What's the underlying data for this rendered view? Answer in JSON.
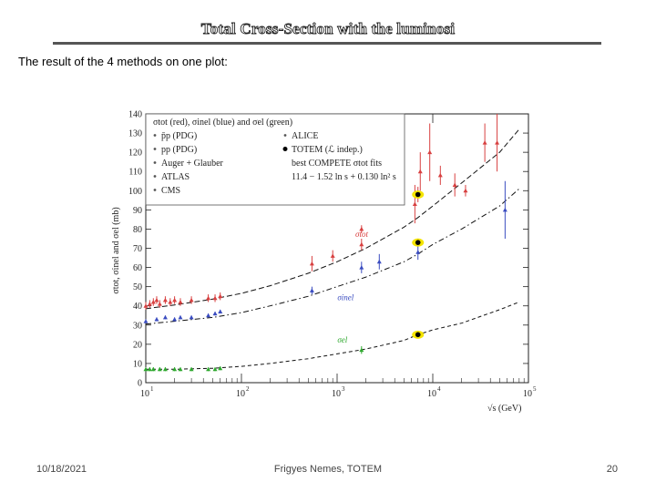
{
  "slide": {
    "title": "Total Cross-Section with the luminosi",
    "subtitle": "The result of the 4 methods on one plot:",
    "footer": {
      "date": "10/18/2021",
      "author": "Frigyes Nemes, TOTEM",
      "page": "20"
    }
  },
  "colors": {
    "tot": "#d84040",
    "inel": "#3a4cc0",
    "el": "#2ea82e",
    "fit": "#111111",
    "totem": "#f4e400"
  },
  "chart_data": {
    "type": "scatter",
    "title": "",
    "xlabel": "√s (GeV)",
    "ylabel": "σtot, σinel and σel (mb)",
    "xscale": "log",
    "xlim": [
      10,
      100000
    ],
    "ylim": [
      0,
      140
    ],
    "x_ticks": [
      {
        "v": 10,
        "base": "10",
        "exp": "1"
      },
      {
        "v": 100,
        "base": "10",
        "exp": "2"
      },
      {
        "v": 1000,
        "base": "10",
        "exp": "3"
      },
      {
        "v": 10000,
        "base": "10",
        "exp": "4"
      },
      {
        "v": 100000,
        "base": "10",
        "exp": "5"
      }
    ],
    "y_ticks": [
      0,
      10,
      20,
      30,
      40,
      50,
      60,
      70,
      80,
      90,
      100,
      110,
      120,
      130,
      140
    ],
    "legend": {
      "header": "σtot (red), σinel (blue) and σel (green)",
      "entries": [
        {
          "label": "p̄p (PDG)",
          "marker": "triangle-up"
        },
        {
          "label": "ALICE",
          "marker": "triangle-down"
        },
        {
          "label": "pp (PDG)",
          "marker": "triangle-down"
        },
        {
          "label": "TOTEM (ℒ indep.)",
          "marker": "dot"
        },
        {
          "label": "Auger + Glauber",
          "marker": "tick"
        },
        {
          "label": "best COMPETE σtot fits",
          "marker": "none"
        },
        {
          "label": "ATLAS",
          "marker": "square"
        },
        {
          "label": "11.4 − 1.52 ln s + 0.130 ln² s",
          "marker": "none"
        },
        {
          "label": "CMS",
          "marker": "triangle-right"
        }
      ]
    },
    "annotations": [
      {
        "text": "σtot",
        "x": 1850,
        "y": 76,
        "series": "tot"
      },
      {
        "text": "σinel",
        "x": 1200,
        "y": 43,
        "series": "inel"
      },
      {
        "text": "σel",
        "x": 1200,
        "y": 21,
        "series": "el"
      }
    ],
    "fits": [
      {
        "name": "σtot fit",
        "style": "solid-dashed",
        "x": [
          10,
          14,
          20,
          30,
          50,
          100,
          200,
          500,
          1000,
          2000,
          5000,
          7000,
          10000,
          20000,
          50000,
          80000
        ],
        "y": [
          38.5,
          39.5,
          40.5,
          41.8,
          43.5,
          46.5,
          50.5,
          57,
          63,
          70,
          81,
          86,
          92,
          104,
          120,
          132
        ]
      },
      {
        "name": "σinel fit",
        "style": "dash-dot",
        "x": [
          10,
          20,
          50,
          100,
          200,
          500,
          1000,
          2000,
          5000,
          7000,
          10000,
          20000,
          50000,
          80000
        ],
        "y": [
          30.5,
          32,
          34,
          36.5,
          40,
          45,
          50,
          55,
          63,
          67,
          72,
          80,
          92,
          101
        ]
      },
      {
        "name": "σel fit",
        "style": "dashed",
        "x": [
          10,
          20,
          50,
          100,
          200,
          500,
          1000,
          2000,
          5000,
          7000,
          10000,
          20000,
          50000,
          80000
        ],
        "y": [
          7,
          7,
          7.5,
          8.5,
          10,
          12.5,
          15,
          17.5,
          22,
          25,
          27.5,
          31,
          38,
          42
        ]
      }
    ],
    "series": [
      {
        "name": "σtot",
        "color_key": "tot",
        "points": [
          {
            "x": 10,
            "y": 40,
            "err": 2
          },
          {
            "x": 11,
            "y": 41,
            "err": 2
          },
          {
            "x": 12,
            "y": 42,
            "err": 2
          },
          {
            "x": 13,
            "y": 43,
            "err": 2
          },
          {
            "x": 14,
            "y": 41,
            "err": 2
          },
          {
            "x": 16,
            "y": 43,
            "err": 2
          },
          {
            "x": 18,
            "y": 42,
            "err": 2
          },
          {
            "x": 20,
            "y": 43,
            "err": 2
          },
          {
            "x": 23,
            "y": 42,
            "err": 2
          },
          {
            "x": 30,
            "y": 43,
            "err": 2
          },
          {
            "x": 45,
            "y": 44,
            "err": 2
          },
          {
            "x": 53,
            "y": 44,
            "err": 2
          },
          {
            "x": 60,
            "y": 45,
            "err": 2
          },
          {
            "x": 546,
            "y": 62,
            "err": 4
          },
          {
            "x": 900,
            "y": 66,
            "err": 3
          },
          {
            "x": 1800,
            "y": 72,
            "err": 3
          },
          {
            "x": 1800,
            "y": 80,
            "err": 2
          },
          {
            "x": 6500,
            "y": 93,
            "err": 10
          },
          {
            "x": 7000,
            "y": 98,
            "err": 4
          },
          {
            "x": 7400,
            "y": 110,
            "err": 10
          },
          {
            "x": 9300,
            "y": 120,
            "err": 15
          },
          {
            "x": 12000,
            "y": 108,
            "err": 5
          },
          {
            "x": 17000,
            "y": 103,
            "err": 6
          },
          {
            "x": 22000,
            "y": 100,
            "err": 3
          },
          {
            "x": 35000,
            "y": 125,
            "err": 10
          },
          {
            "x": 47000,
            "y": 125,
            "err": 15
          }
        ]
      },
      {
        "name": "σinel",
        "color_key": "inel",
        "points": [
          {
            "x": 10,
            "y": 32,
            "err": 1
          },
          {
            "x": 13,
            "y": 33,
            "err": 1
          },
          {
            "x": 16,
            "y": 34,
            "err": 1
          },
          {
            "x": 20,
            "y": 33,
            "err": 1
          },
          {
            "x": 23,
            "y": 34,
            "err": 1
          },
          {
            "x": 30,
            "y": 34,
            "err": 1
          },
          {
            "x": 45,
            "y": 35,
            "err": 1
          },
          {
            "x": 53,
            "y": 36,
            "err": 1
          },
          {
            "x": 60,
            "y": 37,
            "err": 1
          },
          {
            "x": 546,
            "y": 48,
            "err": 2
          },
          {
            "x": 1800,
            "y": 60,
            "err": 3
          },
          {
            "x": 2760,
            "y": 63,
            "err": 4
          },
          {
            "x": 7000,
            "y": 68,
            "err": 4
          },
          {
            "x": 7000,
            "y": 73,
            "err": 2
          },
          {
            "x": 57000,
            "y": 90,
            "err": 15
          }
        ]
      },
      {
        "name": "σel",
        "color_key": "el",
        "points": [
          {
            "x": 10,
            "y": 7,
            "err": 1
          },
          {
            "x": 11,
            "y": 7,
            "err": 1
          },
          {
            "x": 12,
            "y": 7,
            "err": 1
          },
          {
            "x": 14,
            "y": 7,
            "err": 1
          },
          {
            "x": 16,
            "y": 7,
            "err": 1
          },
          {
            "x": 20,
            "y": 7,
            "err": 1
          },
          {
            "x": 23,
            "y": 7,
            "err": 1
          },
          {
            "x": 30,
            "y": 7,
            "err": 1
          },
          {
            "x": 45,
            "y": 7,
            "err": 1
          },
          {
            "x": 53,
            "y": 7,
            "err": 1
          },
          {
            "x": 60,
            "y": 7.5,
            "err": 1
          },
          {
            "x": 1800,
            "y": 17,
            "err": 2
          }
        ]
      },
      {
        "name": "TOTEM (ℒ indep.)",
        "color_key": "fit",
        "highlight": true,
        "points": [
          {
            "x": 7000,
            "y": 98,
            "err": 2
          },
          {
            "x": 7000,
            "y": 73,
            "err": 2
          },
          {
            "x": 7000,
            "y": 25,
            "err": 1
          }
        ]
      }
    ]
  }
}
